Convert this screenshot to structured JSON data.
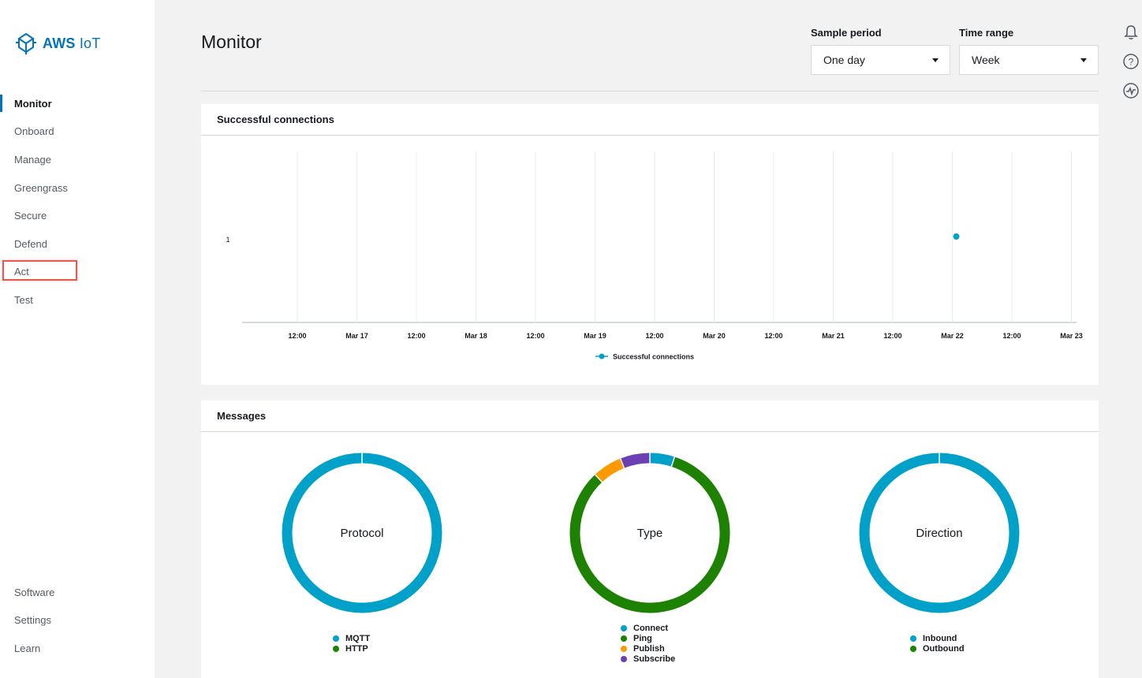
{
  "app": {
    "logo_brand": "AWS",
    "logo_product": "IoT"
  },
  "sidebar": {
    "items": [
      {
        "label": "Monitor",
        "active": true
      },
      {
        "label": "Onboard"
      },
      {
        "label": "Manage"
      },
      {
        "label": "Greengrass"
      },
      {
        "label": "Secure"
      },
      {
        "label": "Defend"
      },
      {
        "label": "Act",
        "highlighted": true
      },
      {
        "label": "Test"
      }
    ],
    "bottom_items": [
      {
        "label": "Software"
      },
      {
        "label": "Settings"
      },
      {
        "label": "Learn"
      }
    ]
  },
  "header": {
    "title": "Monitor",
    "sample_period": {
      "label": "Sample period",
      "value": "One day"
    },
    "time_range": {
      "label": "Time range",
      "value": "Week"
    }
  },
  "top_icons": [
    "bell-icon",
    "help-icon",
    "activity-icon"
  ],
  "colors": {
    "accent": "#0073bb",
    "blue": "#00a1c9",
    "green": "#1d8102",
    "orange": "#ff9900",
    "purple": "#6b40b2",
    "highlight": "#e9574e"
  },
  "connections_panel": {
    "title": "Successful connections"
  },
  "messages_panel": {
    "title": "Messages"
  },
  "chart_data": [
    {
      "type": "line",
      "title": "Successful connections",
      "x_ticks": [
        "12:00",
        "Mar 17",
        "12:00",
        "Mar 18",
        "12:00",
        "Mar 19",
        "12:00",
        "Mar 20",
        "12:00",
        "Mar 21",
        "12:00",
        "Mar 22",
        "12:00",
        "Mar 23"
      ],
      "y_ticks": [
        "1"
      ],
      "series": [
        {
          "name": "Successful connections",
          "color": "#00a1c9",
          "points": [
            {
              "x": "Mar 22",
              "y": 1
            }
          ]
        }
      ],
      "grid": true,
      "legend": "bottom"
    },
    {
      "type": "pie",
      "title": "Protocol",
      "slices": [
        {
          "label": "MQTT",
          "value": 100,
          "color": "#00a1c9"
        },
        {
          "label": "HTTP",
          "value": 0,
          "color": "#1d8102"
        }
      ],
      "legend": "bottom"
    },
    {
      "type": "pie",
      "title": "Type",
      "slices": [
        {
          "label": "Connect",
          "value": 5,
          "color": "#00a1c9"
        },
        {
          "label": "Ping",
          "value": 83,
          "color": "#1d8102"
        },
        {
          "label": "Publish",
          "value": 6,
          "color": "#ff9900"
        },
        {
          "label": "Subscribe",
          "value": 6,
          "color": "#6b40b2"
        }
      ],
      "legend": "bottom"
    },
    {
      "type": "pie",
      "title": "Direction",
      "slices": [
        {
          "label": "Inbound",
          "value": 100,
          "color": "#00a1c9"
        },
        {
          "label": "Outbound",
          "value": 0,
          "color": "#1d8102"
        }
      ],
      "legend": "bottom"
    }
  ]
}
